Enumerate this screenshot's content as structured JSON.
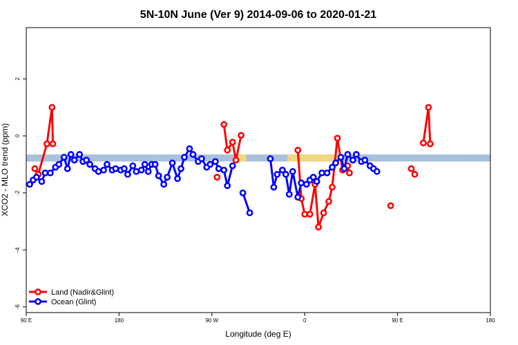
{
  "chart_data": {
    "type": "line",
    "title": "5N-10N June (Ver 9)   2014-09-06 to 2020-01-21",
    "xlabel": "Longitude (deg E)",
    "ylabel": "XCO2 - MLO trend (ppm)",
    "xlim": [
      -90,
      180
    ],
    "ylim": [
      -6.2,
      3.8
    ],
    "x_ticks": [
      {
        "value": -90,
        "label": "90 E"
      },
      {
        "value": -36,
        "label": "180"
      },
      {
        "value": 18,
        "label": "90 W"
      },
      {
        "value": 72,
        "label": "0"
      },
      {
        "value": 126,
        "label": "90 E"
      },
      {
        "value": 180,
        "label": "180"
      }
    ],
    "y_ticks": [
      {
        "value": 2,
        "label": "2"
      },
      {
        "value": 0,
        "label": "0"
      },
      {
        "value": -2,
        "label": "-2"
      },
      {
        "value": -4,
        "label": "-4"
      },
      {
        "value": -6,
        "label": "-6"
      }
    ],
    "legend_position": "bottom-left",
    "band": {
      "y_low": -0.9,
      "y_high": -0.65,
      "color": "#a9c1dc",
      "land_color": "#f8d978"
    },
    "series": [
      {
        "name": "Land (Nadir&Glint)",
        "color": "#ff0000",
        "segments": [
          [
            [
              -85,
              -1.15
            ],
            [
              -83,
              -1.35
            ],
            [
              -78,
              -0.28
            ],
            [
              -75,
              1.0
            ],
            [
              -74.5,
              -0.28
            ]
          ],
          [
            [
              21,
              -1.45
            ]
          ],
          [
            [
              25,
              0.4
            ],
            [
              27,
              -0.5
            ],
            [
              30,
              -0.22
            ],
            [
              32,
              -0.85
            ],
            [
              35,
              0.02
            ]
          ],
          [
            [
              68,
              -0.5
            ],
            [
              70,
              -2.2
            ],
            [
              72,
              -2.75
            ],
            [
              75,
              -2.75
            ],
            [
              78,
              -1.7
            ],
            [
              80,
              -3.2
            ],
            [
              83,
              -2.7
            ],
            [
              86,
              -2.3
            ],
            [
              88,
              -1.8
            ],
            [
              91,
              -0.08
            ],
            [
              94,
              -1.2
            ],
            [
              97,
              -1.05
            ],
            [
              98,
              -1.3
            ]
          ],
          [
            [
              122,
              -2.45
            ]
          ],
          [
            [
              134,
              -1.15
            ],
            [
              136,
              -1.35
            ]
          ],
          [
            [
              141,
              -0.25
            ],
            [
              144,
              1.0
            ],
            [
              145,
              -0.28
            ]
          ]
        ]
      },
      {
        "name": "Ocean (Glint)",
        "color": "#0000ff",
        "segments": [
          [
            [
              -88,
              -1.7
            ],
            [
              -86,
              -1.55
            ],
            [
              -84,
              -1.45
            ],
            [
              -81,
              -1.6
            ],
            [
              -79,
              -1.3
            ],
            [
              -76,
              -1.3
            ],
            [
              -73,
              -1.1
            ],
            [
              -71,
              -1.0
            ],
            [
              -68,
              -0.75
            ],
            [
              -66,
              -1.15
            ],
            [
              -64,
              -0.65
            ],
            [
              -62,
              -0.85
            ],
            [
              -59,
              -0.65
            ],
            [
              -57,
              -0.9
            ],
            [
              -55,
              -0.85
            ],
            [
              -53,
              -1.0
            ],
            [
              -50,
              -1.15
            ],
            [
              -48,
              -1.25
            ],
            [
              -45,
              -1.2
            ],
            [
              -43,
              -1.0
            ],
            [
              -40,
              -1.2
            ],
            [
              -38,
              -1.15
            ],
            [
              -35,
              -1.2
            ],
            [
              -33,
              -1.15
            ],
            [
              -31,
              -1.35
            ],
            [
              -28,
              -1.05
            ],
            [
              -26,
              -1.25
            ],
            [
              -23,
              -1.2
            ],
            [
              -21,
              -1.0
            ],
            [
              -19,
              -1.25
            ],
            [
              -17,
              -1.0
            ],
            [
              -15,
              -1.0
            ],
            [
              -13,
              -1.4
            ],
            [
              -10,
              -1.7
            ],
            [
              -8,
              -1.45
            ],
            [
              -5,
              -0.95
            ],
            [
              -2,
              -1.5
            ],
            [
              0,
              -1.15
            ],
            [
              2,
              -0.75
            ],
            [
              5,
              -0.45
            ],
            [
              7,
              -0.65
            ],
            [
              10,
              -0.9
            ],
            [
              12,
              -0.8
            ],
            [
              15,
              -1.1
            ],
            [
              17,
              -1.0
            ],
            [
              20,
              -0.9
            ],
            [
              22,
              -1.15
            ],
            [
              25,
              -1.2
            ],
            [
              27,
              -1.75
            ],
            [
              30,
              -1.05
            ]
          ],
          [
            [
              36,
              -2.0
            ],
            [
              40,
              -2.7
            ]
          ],
          [
            [
              52,
              -0.8
            ],
            [
              54,
              -1.8
            ],
            [
              56,
              -1.35
            ],
            [
              59,
              -1.2
            ],
            [
              61,
              -1.35
            ],
            [
              63,
              -2.05
            ],
            [
              65,
              -1.25
            ],
            [
              68,
              -2.15
            ],
            [
              70,
              -1.65
            ],
            [
              73,
              -1.7
            ],
            [
              75,
              -1.55
            ],
            [
              77,
              -1.45
            ],
            [
              79,
              -1.6
            ],
            [
              82,
              -1.3
            ],
            [
              85,
              -1.3
            ],
            [
              88,
              -1.1
            ],
            [
              90,
              -0.95
            ],
            [
              93,
              -0.75
            ],
            [
              95,
              -1.15
            ],
            [
              97,
              -0.65
            ],
            [
              100,
              -0.85
            ],
            [
              102,
              -0.65
            ],
            [
              105,
              -0.9
            ],
            [
              107,
              -0.85
            ],
            [
              110,
              -1.05
            ],
            [
              112,
              -1.15
            ],
            [
              114,
              -1.25
            ]
          ]
        ]
      }
    ]
  }
}
